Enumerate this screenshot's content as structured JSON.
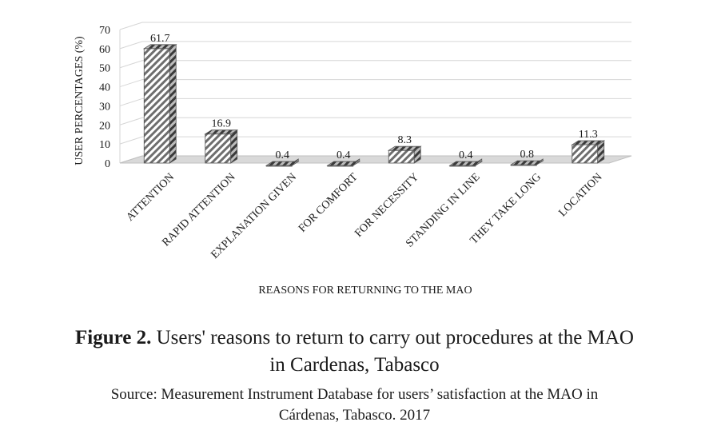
{
  "chart_data": {
    "type": "bar",
    "categories": [
      "ATTENTION",
      "RAPID ATTENTION",
      "EXPLANATION GIVEN",
      "FOR COMFORT",
      "FOR NECESSITY",
      "STANDING IN LINE",
      "THEY TAKE LONG",
      "LOCATION"
    ],
    "values": [
      61.7,
      16.9,
      0.4,
      0.4,
      8.3,
      0.4,
      0.8,
      11.3
    ],
    "data_labels": [
      "61.7",
      "16.9",
      "0.4",
      "0.4",
      "8.3",
      "0.4",
      "0.8",
      "11.3"
    ],
    "xlabel": "REASONS FOR RETURNING TO THE  MAO",
    "ylabel": "USER PERCENTAGES (%)",
    "ylim": [
      0,
      70
    ],
    "yticks": [
      "0",
      "10",
      "20",
      "30",
      "40",
      "50",
      "60",
      "70"
    ],
    "grid": true,
    "style": "3d-hatched"
  },
  "caption": {
    "label": "Figure 2.",
    "text_line1": " Users' reasons to return to carry out procedures at the MAO",
    "text_line2": "in Cardenas, Tabasco",
    "source_line1": "Source: Measurement Instrument Database for users’ satisfaction at the MAO in",
    "source_line2": "Cárdenas, Tabasco. 2017"
  }
}
